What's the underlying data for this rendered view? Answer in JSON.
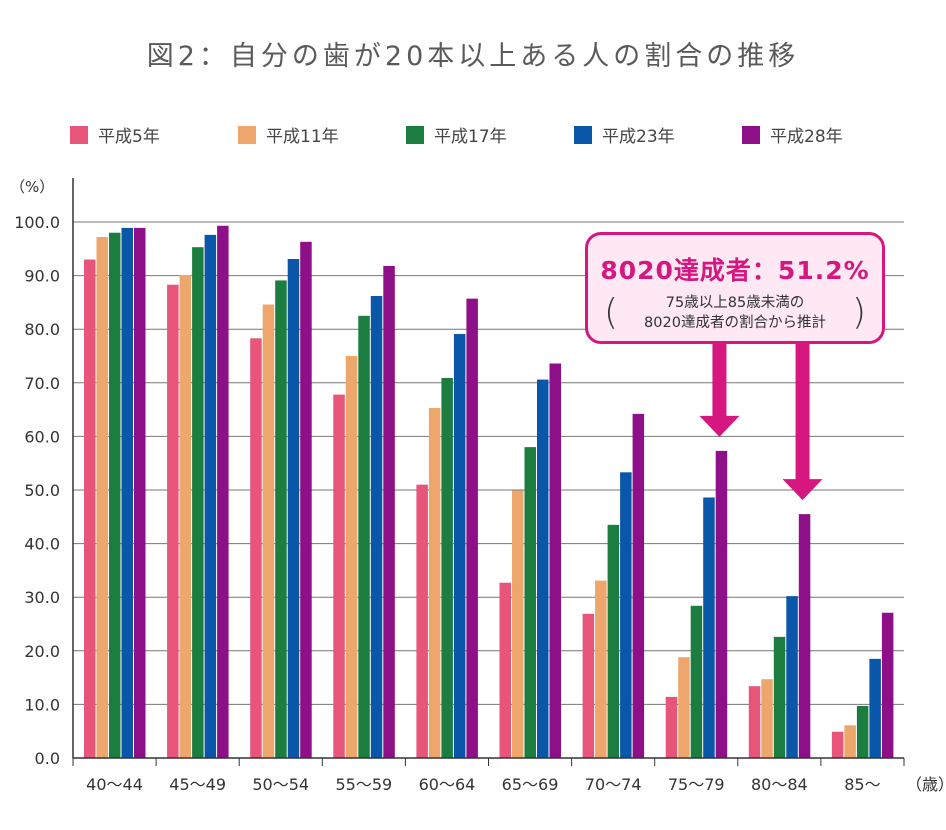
{
  "title": "図2：自分の歯が20本以上ある人の割合の推移",
  "callout": {
    "main": "8020達成者：51.2%",
    "sub_line1": "75歳以上85歳未満の",
    "sub_line2": "8020達成者の割合から推計"
  },
  "colors": {
    "accent": "#d6177f",
    "grid": "#555555"
  },
  "chart_data": {
    "type": "bar",
    "title": "図2：自分の歯が20本以上ある人の割合の推移",
    "ylabel": "（%）",
    "xlabel": "（歳）",
    "ylim": [
      0,
      100
    ],
    "yticks": [
      "0.0",
      "10.0",
      "20.0",
      "30.0",
      "40.0",
      "50.0",
      "60.0",
      "70.0",
      "80.0",
      "90.0",
      "100.0"
    ],
    "categories": [
      "40～44",
      "45～49",
      "50～54",
      "55～59",
      "60～64",
      "65～69",
      "70～74",
      "75～79",
      "80～84",
      "85～"
    ],
    "legend_position": "top",
    "grid": true,
    "series": [
      {
        "name": "平成5年",
        "color": "#e8557a",
        "values": [
          93.0,
          88.3,
          78.3,
          67.8,
          51.0,
          32.7,
          26.9,
          11.4,
          13.4,
          4.9
        ]
      },
      {
        "name": "平成11年",
        "color": "#eda66c",
        "values": [
          97.2,
          90.1,
          84.6,
          75.0,
          65.3,
          49.9,
          33.1,
          18.8,
          14.7,
          6.1
        ]
      },
      {
        "name": "平成17年",
        "color": "#1b7d3f",
        "values": [
          98.0,
          95.3,
          89.1,
          82.5,
          70.9,
          58.0,
          43.5,
          28.4,
          22.6,
          9.7
        ]
      },
      {
        "name": "平成23年",
        "color": "#0a56a8",
        "values": [
          98.9,
          97.6,
          93.1,
          86.2,
          79.1,
          70.6,
          53.3,
          48.6,
          30.2,
          18.5
        ]
      },
      {
        "name": "平成28年",
        "color": "#8e1088",
        "values": [
          98.9,
          99.3,
          96.3,
          91.8,
          85.7,
          73.6,
          64.2,
          57.3,
          45.5,
          27.1
        ]
      }
    ]
  }
}
